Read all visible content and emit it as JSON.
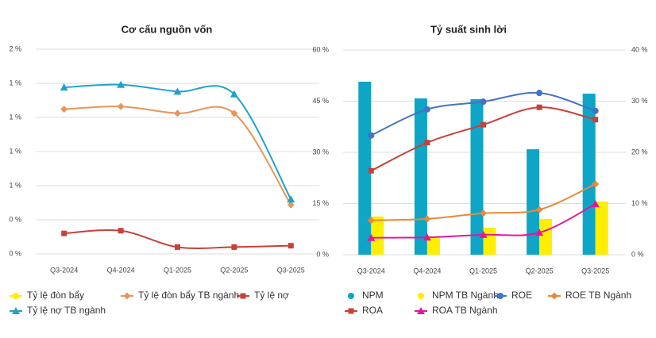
{
  "chart_data": [
    {
      "type": "line",
      "title": "Cơ cấu nguồn vốn",
      "categories": [
        "Q3-2024",
        "Q4-2024",
        "Q1-2025",
        "Q2-2025",
        "Q3-2025"
      ],
      "ylim": [
        0,
        1.5
      ],
      "yticks": [
        {
          "value": 0,
          "label": "0 %"
        },
        {
          "value": 0.25,
          "label": "0 %"
        },
        {
          "value": 0.5,
          "label": "1 %"
        },
        {
          "value": 0.75,
          "label": "1 %"
        },
        {
          "value": 1.0,
          "label": "1 %"
        },
        {
          "value": 1.25,
          "label": "1 %"
        },
        {
          "value": 1.5,
          "label": "2 %"
        }
      ],
      "grid": true,
      "series": [
        {
          "name": "Tỷ lệ đòn bẩy",
          "color": "#ffee00",
          "marker": "circle",
          "values": [
            null,
            null,
            null,
            null,
            null
          ]
        },
        {
          "name": "Tỷ lệ đòn bẩy TB ngành",
          "color": "#e8955a",
          "marker": "diamond",
          "values": [
            1.06,
            1.08,
            1.03,
            1.03,
            0.36
          ]
        },
        {
          "name": "Tỷ lệ nợ",
          "color": "#c9403a",
          "marker": "square",
          "values": [
            0.15,
            0.17,
            0.05,
            0.05,
            0.06
          ]
        },
        {
          "name": "Tỷ lệ nợ TB ngành",
          "color": "#1fa3c8",
          "marker": "triangle",
          "values": [
            1.22,
            1.24,
            1.19,
            1.17,
            0.4
          ]
        }
      ]
    },
    {
      "type": "bar",
      "title": "Tỷ suất sinh lời",
      "categories": [
        "Q3-2024",
        "Q4-2024",
        "Q1-2025",
        "Q2-2025",
        "Q3-2025"
      ],
      "ylim": [
        0,
        60
      ],
      "yticks": [
        {
          "value": 0,
          "label": "0 %"
        },
        {
          "value": 15,
          "label": "15 %"
        },
        {
          "value": 30,
          "label": "30 %"
        },
        {
          "value": 45,
          "label": "45 %"
        },
        {
          "value": 60,
          "label": "60 %"
        }
      ],
      "y2lim": [
        0,
        40
      ],
      "y2ticks": [
        {
          "value": 0,
          "label": "0 %"
        },
        {
          "value": 10,
          "label": "10 %"
        },
        {
          "value": 20,
          "label": "20 %"
        },
        {
          "value": 30,
          "label": "30 %"
        },
        {
          "value": 40,
          "label": "40 %"
        }
      ],
      "grid": true,
      "series": [
        {
          "name": "NPM",
          "color": "#0ea5c6",
          "type": "bar",
          "marker": "circle",
          "values": [
            50.7,
            45.8,
            45.6,
            30.9,
            47.2
          ]
        },
        {
          "name": "NPM TB Ngành",
          "color": "#ffee00",
          "type": "bar",
          "marker": "circle",
          "values": [
            11.2,
            5.3,
            7.9,
            10.5,
            15.6
          ]
        },
        {
          "name": "ROE",
          "color": "#4472c4",
          "type": "line",
          "axis": "y2",
          "marker": "circle",
          "values": [
            23.3,
            28.4,
            29.9,
            31.6,
            28.1
          ]
        },
        {
          "name": "ROE TB Ngành",
          "color": "#e8893a",
          "type": "line",
          "axis": "y2",
          "marker": "diamond",
          "values": [
            6.7,
            7.0,
            8.1,
            8.8,
            13.8
          ]
        },
        {
          "name": "ROA",
          "color": "#c9403a",
          "type": "line",
          "axis": "y2",
          "marker": "square",
          "values": [
            16.4,
            21.9,
            25.4,
            28.8,
            26.4
          ]
        },
        {
          "name": "ROA TB Ngành",
          "color": "#e0199a",
          "type": "line",
          "axis": "y2",
          "marker": "triangle",
          "values": [
            3.3,
            3.4,
            3.9,
            4.3,
            9.9
          ]
        }
      ]
    }
  ]
}
